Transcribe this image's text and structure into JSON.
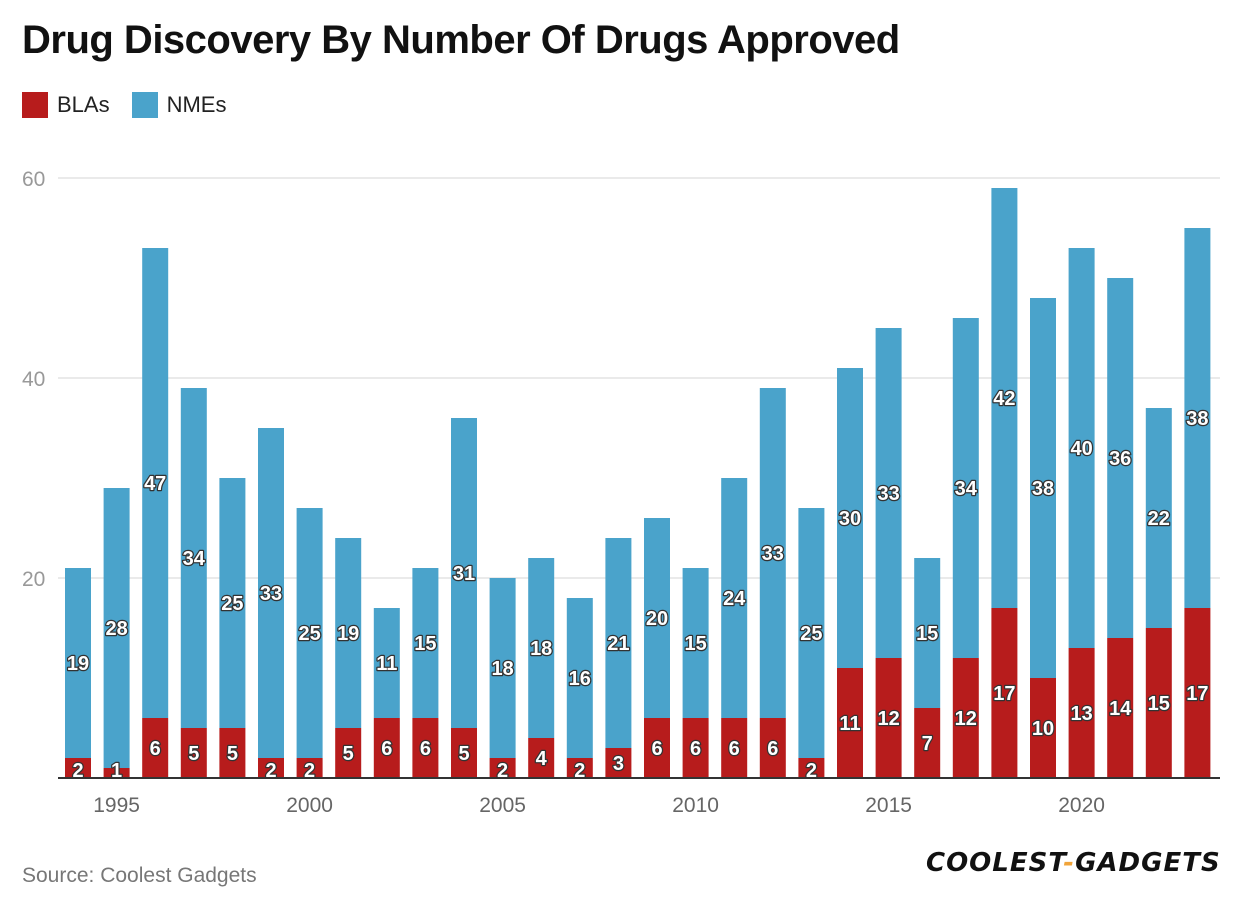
{
  "title": "Drug Discovery By Number Of Drugs Approved",
  "legend": [
    {
      "label": "BLAs",
      "color": "#b71c1c"
    },
    {
      "label": "NMEs",
      "color": "#4aa3cb"
    }
  ],
  "source": "Source: Coolest Gadgets",
  "logo": {
    "left": "COOLEST",
    "dash": "-",
    "right": "GADGETS"
  },
  "chart_data": {
    "type": "bar",
    "stacked": true,
    "title": "Drug Discovery By Number Of Drugs Approved",
    "xlabel": "",
    "ylabel": "",
    "ylim": [
      0,
      60
    ],
    "yticks": [
      20,
      40,
      60
    ],
    "xticks": [
      1995,
      2000,
      2005,
      2010,
      2015,
      2020
    ],
    "grid": true,
    "legend_position": "top-left",
    "categories": [
      1994,
      1995,
      1996,
      1997,
      1998,
      1999,
      2000,
      2001,
      2002,
      2003,
      2004,
      2005,
      2006,
      2007,
      2008,
      2009,
      2010,
      2011,
      2012,
      2013,
      2014,
      2015,
      2016,
      2017,
      2018,
      2019,
      2020,
      2021,
      2022,
      2023
    ],
    "series": [
      {
        "name": "BLAs",
        "color": "#b71c1c",
        "values": [
          2,
          1,
          6,
          5,
          5,
          2,
          2,
          5,
          6,
          6,
          5,
          2,
          4,
          2,
          3,
          6,
          6,
          6,
          6,
          2,
          11,
          12,
          7,
          12,
          17,
          10,
          13,
          14,
          15,
          17
        ]
      },
      {
        "name": "NMEs",
        "color": "#4aa3cb",
        "values": [
          19,
          28,
          47,
          34,
          25,
          33,
          25,
          19,
          11,
          15,
          31,
          18,
          18,
          16,
          21,
          20,
          15,
          24,
          33,
          25,
          30,
          33,
          15,
          34,
          42,
          38,
          40,
          36,
          22,
          38
        ]
      }
    ]
  }
}
